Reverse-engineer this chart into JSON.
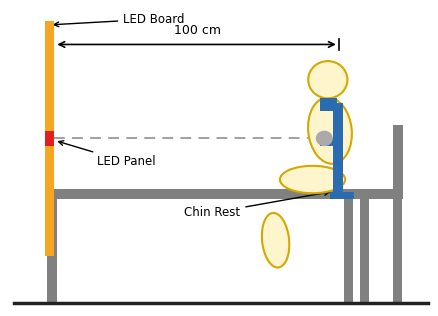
{
  "bg_color": "#ffffff",
  "board_color": "#F5A623",
  "board_outline": "#D4850A",
  "table_color": "#808080",
  "led_panel_color": "#E02020",
  "person_fill": "#FFF5CC",
  "person_outline": "#D4A800",
  "chin_rest_color": "#2B6CB0",
  "chair_color": "#808080",
  "floor_color": "#222222",
  "dashed_color": "#999999",
  "arrow_color": "#000000",
  "text_color": "#000000",
  "label_board": "LED Board",
  "label_panel": "LED Panel",
  "label_chin": "Chin Rest",
  "label_dist": "100 cm",
  "figsize": [
    4.38,
    3.16
  ],
  "dpi": 100,
  "xlim": [
    0,
    10
  ],
  "ylim": [
    0,
    8
  ]
}
